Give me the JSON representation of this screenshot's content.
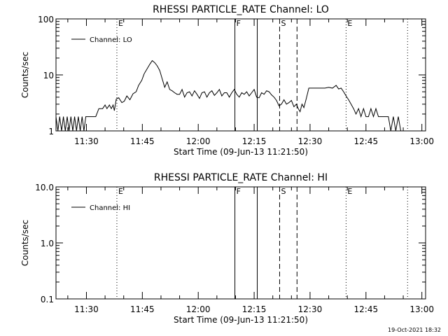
{
  "footer": {
    "timestamp": "19-Oct-2021 18:32"
  },
  "chart_data": [
    {
      "type": "line",
      "title": "RHESSI PARTICLE_RATE Channel: LO",
      "xlabel": "Start Time (09-Jun-13 11:21:50)",
      "ylabel": "Counts/sec",
      "y_scale": "log",
      "xlim": [
        "11:21:50",
        "13:01:00"
      ],
      "ylim": [
        1,
        100
      ],
      "x_ticks": [
        "11:30",
        "11:45",
        "12:00",
        "12:15",
        "12:30",
        "12:45",
        "13:00"
      ],
      "y_ticks": [
        {
          "value": 1,
          "label": "1"
        },
        {
          "value": 10,
          "label": "10"
        },
        {
          "value": 100,
          "label": "100"
        }
      ],
      "legend": {
        "position": "top-left",
        "entries": [
          "Channel: LO"
        ]
      },
      "color": "#000000",
      "markers": [
        {
          "time": "11:38:10",
          "label": "E",
          "style": "dotted"
        },
        {
          "time": "12:09:50",
          "label": "F",
          "style": "solid"
        },
        {
          "time": "12:15:50",
          "label": "",
          "style": "solid"
        },
        {
          "time": "12:21:50",
          "label": "S",
          "style": "dashed"
        },
        {
          "time": "12:26:30",
          "label": "",
          "style": "dashed"
        },
        {
          "time": "12:39:40",
          "label": "E",
          "style": "dotted"
        },
        {
          "time": "12:56:10",
          "label": "",
          "style": "dotted"
        }
      ],
      "series": [
        {
          "name": "Channel: LO",
          "points": [
            [
              "11:21:50",
              1.8
            ],
            [
              "11:22:20",
              1.0
            ],
            [
              "11:22:50",
              1.8
            ],
            [
              "11:23:20",
              1.0
            ],
            [
              "11:23:50",
              1.8
            ],
            [
              "11:24:20",
              1.0
            ],
            [
              "11:24:50",
              1.8
            ],
            [
              "11:25:20",
              1.0
            ],
            [
              "11:25:50",
              1.8
            ],
            [
              "11:26:20",
              1.0
            ],
            [
              "11:26:50",
              1.8
            ],
            [
              "11:27:20",
              1.0
            ],
            [
              "11:27:50",
              1.8
            ],
            [
              "11:28:20",
              1.0
            ],
            [
              "11:28:50",
              1.8
            ],
            [
              "11:29:20",
              1.0
            ],
            [
              "11:29:50",
              1.8
            ],
            [
              "11:30:20",
              1.8
            ],
            [
              "11:31:30",
              1.8
            ],
            [
              "11:32:30",
              1.8
            ],
            [
              "11:33:20",
              2.5
            ],
            [
              "11:34:20",
              2.5
            ],
            [
              "11:35:00",
              2.9
            ],
            [
              "11:35:30",
              2.5
            ],
            [
              "11:36:10",
              2.9
            ],
            [
              "11:36:40",
              2.5
            ],
            [
              "11:37:10",
              2.9
            ],
            [
              "11:37:30",
              2.3
            ],
            [
              "11:38:00",
              3.7
            ],
            [
              "11:38:40",
              3.9
            ],
            [
              "11:39:30",
              3.2
            ],
            [
              "11:40:10",
              3.4
            ],
            [
              "11:40:50",
              4.2
            ],
            [
              "11:41:40",
              3.6
            ],
            [
              "11:42:30",
              4.6
            ],
            [
              "11:43:20",
              5.0
            ],
            [
              "11:44:00",
              6.5
            ],
            [
              "11:44:50",
              8.0
            ],
            [
              "11:45:30",
              10.5
            ],
            [
              "11:46:20",
              13.0
            ],
            [
              "11:47:00",
              15.5
            ],
            [
              "11:47:40",
              18.0
            ],
            [
              "11:48:20",
              16.5
            ],
            [
              "11:49:00",
              14.5
            ],
            [
              "11:49:40",
              12.0
            ],
            [
              "11:50:20",
              8.5
            ],
            [
              "11:51:00",
              6.0
            ],
            [
              "11:51:40",
              7.5
            ],
            [
              "11:52:20",
              5.5
            ],
            [
              "11:53:00",
              5.2
            ],
            [
              "11:53:40",
              4.8
            ],
            [
              "11:54:20",
              4.5
            ],
            [
              "11:55:00",
              4.5
            ],
            [
              "11:55:40",
              5.5
            ],
            [
              "11:56:20",
              4.0
            ],
            [
              "11:57:00",
              4.8
            ],
            [
              "11:57:40",
              5.0
            ],
            [
              "11:58:20",
              4.2
            ],
            [
              "11:59:00",
              5.2
            ],
            [
              "11:59:40",
              4.5
            ],
            [
              "12:00:20",
              3.8
            ],
            [
              "12:01:00",
              4.8
            ],
            [
              "12:01:40",
              5.0
            ],
            [
              "12:02:20",
              4.0
            ],
            [
              "12:03:00",
              4.8
            ],
            [
              "12:03:40",
              5.2
            ],
            [
              "12:04:20",
              4.3
            ],
            [
              "12:05:00",
              4.8
            ],
            [
              "12:05:40",
              5.5
            ],
            [
              "12:06:20",
              4.2
            ],
            [
              "12:07:00",
              4.8
            ],
            [
              "12:07:40",
              4.8
            ],
            [
              "12:08:20",
              4.0
            ],
            [
              "12:09:00",
              4.8
            ],
            [
              "12:09:40",
              5.5
            ],
            [
              "12:10:20",
              4.5
            ],
            [
              "12:11:00",
              4.0
            ],
            [
              "12:11:40",
              4.8
            ],
            [
              "12:12:20",
              4.5
            ],
            [
              "12:13:00",
              5.0
            ],
            [
              "12:13:40",
              4.2
            ],
            [
              "12:14:20",
              4.8
            ],
            [
              "12:15:00",
              5.5
            ],
            [
              "12:15:40",
              4.0
            ],
            [
              "12:16:20",
              3.9
            ],
            [
              "12:17:00",
              4.8
            ],
            [
              "12:17:40",
              4.5
            ],
            [
              "12:18:20",
              5.2
            ],
            [
              "12:19:00",
              5.0
            ],
            [
              "12:19:40",
              4.4
            ],
            [
              "12:20:20",
              4.0
            ],
            [
              "12:21:00",
              3.5
            ],
            [
              "12:21:40",
              2.8
            ],
            [
              "12:22:20",
              3.0
            ],
            [
              "12:23:00",
              3.6
            ],
            [
              "12:23:40",
              3.0
            ],
            [
              "12:24:20",
              3.2
            ],
            [
              "12:25:00",
              3.5
            ],
            [
              "12:25:40",
              2.7
            ],
            [
              "12:26:20",
              3.0
            ],
            [
              "12:26:50",
              2.5
            ],
            [
              "12:27:20",
              2.2
            ],
            [
              "12:27:50",
              3.0
            ],
            [
              "12:28:20",
              2.6
            ],
            [
              "12:29:00",
              3.8
            ],
            [
              "12:29:40",
              5.8
            ],
            [
              "12:31:00",
              5.8
            ],
            [
              "12:32:30",
              5.8
            ],
            [
              "12:34:00",
              5.8
            ],
            [
              "12:35:00",
              6.0
            ],
            [
              "12:36:00",
              5.8
            ],
            [
              "12:37:00",
              6.5
            ],
            [
              "12:37:40",
              5.6
            ],
            [
              "12:38:20",
              5.8
            ],
            [
              "12:39:00",
              5.0
            ],
            [
              "12:39:40",
              4.2
            ],
            [
              "12:40:20",
              3.6
            ],
            [
              "12:41:00",
              3.0
            ],
            [
              "12:41:40",
              2.5
            ],
            [
              "12:42:20",
              2.0
            ],
            [
              "12:43:00",
              2.5
            ],
            [
              "12:43:40",
              1.8
            ],
            [
              "12:44:20",
              2.5
            ],
            [
              "12:45:00",
              1.8
            ],
            [
              "12:45:40",
              1.8
            ],
            [
              "12:46:20",
              2.5
            ],
            [
              "12:47:00",
              1.8
            ],
            [
              "12:47:40",
              2.5
            ],
            [
              "12:48:20",
              1.8
            ],
            [
              "12:49:00",
              1.8
            ],
            [
              "12:50:00",
              1.8
            ],
            [
              "12:51:00",
              1.8
            ],
            [
              "12:51:40",
              1.0
            ],
            [
              "12:52:20",
              1.8
            ],
            [
              "12:53:00",
              1.0
            ],
            [
              "12:53:40",
              1.8
            ],
            [
              "12:54:20",
              1.0
            ],
            [
              "12:55:00",
              1.0
            ],
            [
              "12:55:40",
              1.0
            ]
          ]
        }
      ]
    },
    {
      "type": "line",
      "title": "RHESSI PARTICLE_RATE Channel: HI",
      "xlabel": "Start Time (09-Jun-13 11:21:50)",
      "ylabel": "Counts/sec",
      "y_scale": "log",
      "xlim": [
        "11:21:50",
        "13:01:00"
      ],
      "ylim": [
        0.1,
        10
      ],
      "x_ticks": [
        "11:30",
        "11:45",
        "12:00",
        "12:15",
        "12:30",
        "12:45",
        "13:00"
      ],
      "y_ticks": [
        {
          "value": 0.1,
          "label": "0.1"
        },
        {
          "value": 1,
          "label": "1.0"
        },
        {
          "value": 10,
          "label": "10.0"
        }
      ],
      "legend": {
        "position": "top-left",
        "entries": [
          "Channel: HI"
        ]
      },
      "color": "#000000",
      "markers": [
        {
          "time": "11:38:10",
          "label": "E",
          "style": "dotted"
        },
        {
          "time": "12:09:50",
          "label": "F",
          "style": "solid"
        },
        {
          "time": "12:15:50",
          "label": "",
          "style": "solid"
        },
        {
          "time": "12:21:50",
          "label": "S",
          "style": "dashed"
        },
        {
          "time": "12:26:30",
          "label": "",
          "style": "dashed"
        },
        {
          "time": "12:39:40",
          "label": "E",
          "style": "dotted"
        },
        {
          "time": "12:56:10",
          "label": "",
          "style": "dotted"
        }
      ],
      "series": [
        {
          "name": "Channel: HI",
          "points": []
        }
      ]
    }
  ]
}
